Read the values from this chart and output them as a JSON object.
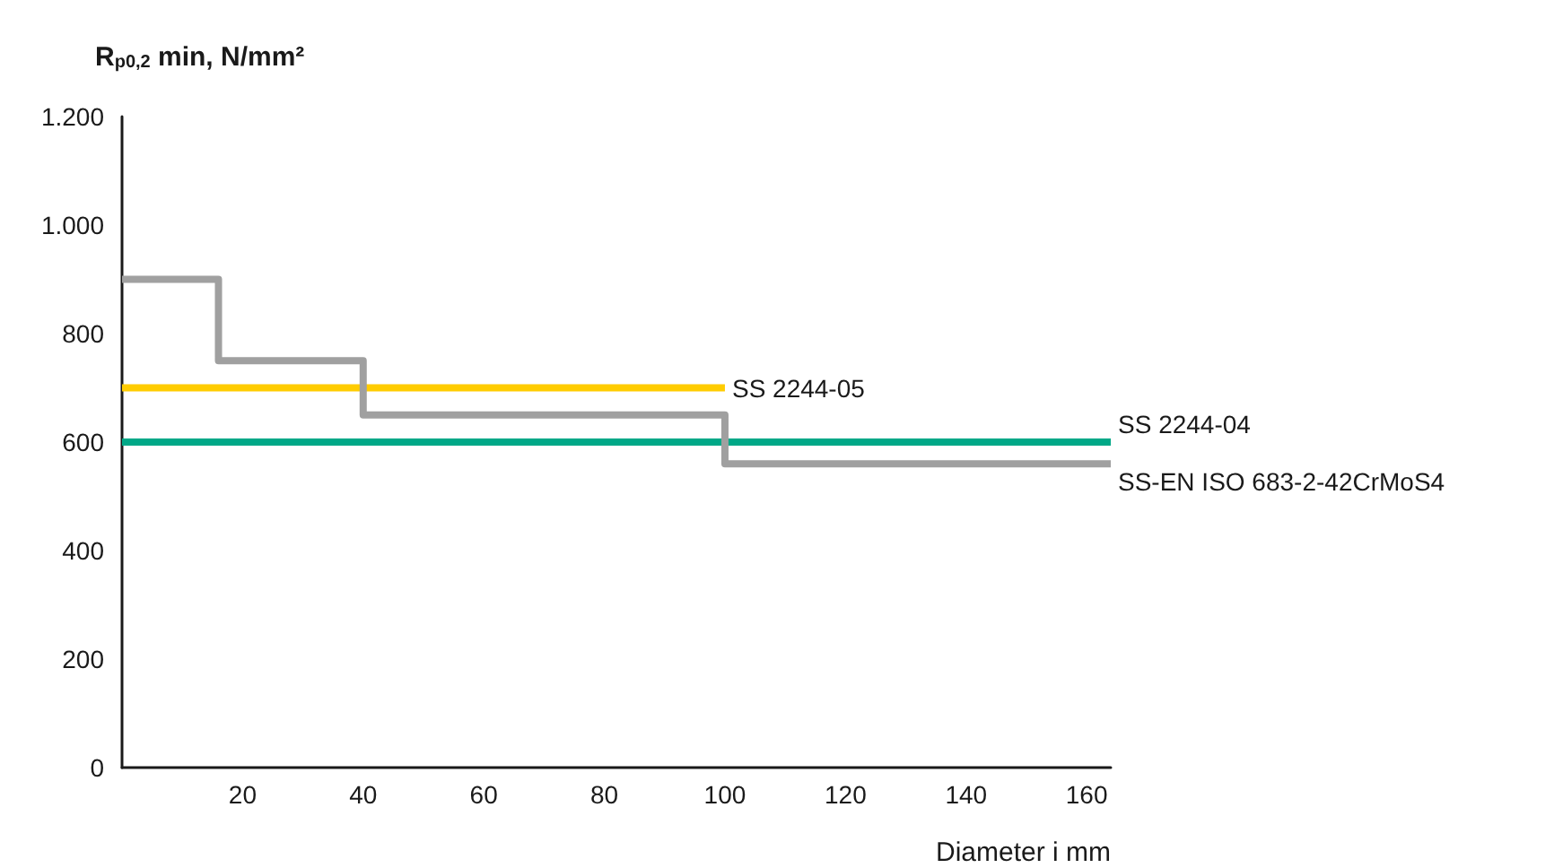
{
  "chart_data": {
    "type": "line",
    "ylabel": "R$_{p0,2}$ min, N/mm²",
    "xlabel": "Diameter i mm",
    "xlim": [
      0,
      164
    ],
    "xticks": [
      20,
      40,
      60,
      80,
      100,
      120,
      140,
      160
    ],
    "ylim": [
      0,
      1200
    ],
    "yticks": [
      0,
      200,
      400,
      600,
      800,
      {
        "value": 1000,
        "label": "1.000"
      },
      {
        "value": 1200,
        "label": "1.200"
      }
    ],
    "grid": false,
    "legend": false,
    "marker": "none",
    "line_style": "solid",
    "series": [
      {
        "name": "SS 2244-05",
        "color": "#ffcc00",
        "x": [
          0,
          100
        ],
        "values": [
          700,
          700
        ]
      },
      {
        "name": "SS 2244-04",
        "color": "#00a887",
        "x": [
          0,
          164
        ],
        "values": [
          600,
          600
        ]
      },
      {
        "name": "SS-EN ISO 683-2-42CrMoS4",
        "type": "step",
        "color": "#a0a0a0",
        "x": [
          0,
          16,
          40,
          100,
          164
        ],
        "values": [
          900,
          750,
          650,
          560,
          560
        ]
      }
    ]
  }
}
